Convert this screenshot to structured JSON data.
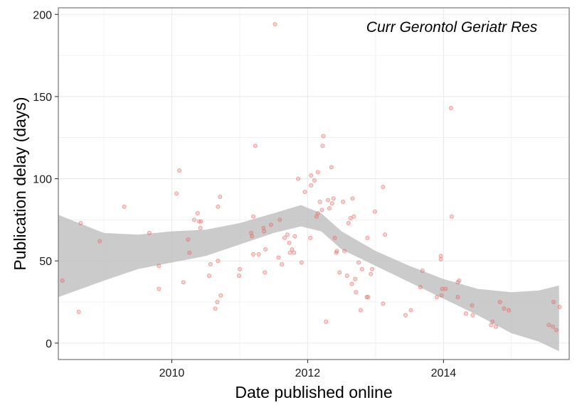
{
  "chart_data": {
    "type": "scatter",
    "title": "",
    "annotation": "Curr Gerontol Geriatr Res",
    "xlabel": "Date published online",
    "ylabel": "Publication delay (days)",
    "xlim": [
      2008.33,
      2015.85
    ],
    "ylim": [
      -10,
      204
    ],
    "x_ticks": [
      2010,
      2012,
      2014
    ],
    "y_ticks": [
      0,
      50,
      100,
      150,
      200
    ],
    "x_tick_labels": [
      "2010",
      "2012",
      "2014"
    ],
    "y_tick_labels": [
      "0",
      "50",
      "100",
      "150",
      "200"
    ],
    "grid": true,
    "colors": {
      "points": "#e8665f",
      "ribbon": "#bdbdbd",
      "grid": "#ebebeb",
      "border": "#7f7f7f"
    },
    "points": [
      {
        "x": 2008.39,
        "y": 38
      },
      {
        "x": 2008.63,
        "y": 19
      },
      {
        "x": 2008.66,
        "y": 73
      },
      {
        "x": 2008.94,
        "y": 62
      },
      {
        "x": 2009.3,
        "y": 83
      },
      {
        "x": 2009.67,
        "y": 67
      },
      {
        "x": 2009.81,
        "y": 47
      },
      {
        "x": 2009.81,
        "y": 33
      },
      {
        "x": 2010.07,
        "y": 91
      },
      {
        "x": 2010.11,
        "y": 105
      },
      {
        "x": 2010.17,
        "y": 37
      },
      {
        "x": 2010.24,
        "y": 63
      },
      {
        "x": 2010.26,
        "y": 55
      },
      {
        "x": 2010.33,
        "y": 75
      },
      {
        "x": 2010.38,
        "y": 79
      },
      {
        "x": 2010.43,
        "y": 74
      },
      {
        "x": 2010.4,
        "y": 74
      },
      {
        "x": 2010.42,
        "y": 70
      },
      {
        "x": 2010.55,
        "y": 41
      },
      {
        "x": 2010.57,
        "y": 48
      },
      {
        "x": 2010.64,
        "y": 21
      },
      {
        "x": 2010.67,
        "y": 25
      },
      {
        "x": 2010.68,
        "y": 50
      },
      {
        "x": 2010.68,
        "y": 83
      },
      {
        "x": 2010.71,
        "y": 89
      },
      {
        "x": 2010.72,
        "y": 29
      },
      {
        "x": 2010.99,
        "y": 41
      },
      {
        "x": 2011.0,
        "y": 45
      },
      {
        "x": 2011.17,
        "y": 67
      },
      {
        "x": 2011.18,
        "y": 65
      },
      {
        "x": 2011.2,
        "y": 54
      },
      {
        "x": 2011.2,
        "y": 77
      },
      {
        "x": 2011.23,
        "y": 120
      },
      {
        "x": 2011.28,
        "y": 54
      },
      {
        "x": 2011.35,
        "y": 70
      },
      {
        "x": 2011.36,
        "y": 68
      },
      {
        "x": 2011.37,
        "y": 43
      },
      {
        "x": 2011.38,
        "y": 57
      },
      {
        "x": 2011.46,
        "y": 72
      },
      {
        "x": 2011.52,
        "y": 194
      },
      {
        "x": 2011.57,
        "y": 52
      },
      {
        "x": 2011.59,
        "y": 75
      },
      {
        "x": 2011.62,
        "y": 48
      },
      {
        "x": 2011.66,
        "y": 64
      },
      {
        "x": 2011.7,
        "y": 66
      },
      {
        "x": 2011.73,
        "y": 61
      },
      {
        "x": 2011.74,
        "y": 55
      },
      {
        "x": 2011.77,
        "y": 57
      },
      {
        "x": 2011.8,
        "y": 55
      },
      {
        "x": 2011.81,
        "y": 65
      },
      {
        "x": 2011.86,
        "y": 100
      },
      {
        "x": 2011.91,
        "y": 49
      },
      {
        "x": 2011.96,
        "y": 92
      },
      {
        "x": 2012.04,
        "y": 64
      },
      {
        "x": 2012.05,
        "y": 102
      },
      {
        "x": 2012.05,
        "y": 96
      },
      {
        "x": 2012.1,
        "y": 99
      },
      {
        "x": 2012.13,
        "y": 77
      },
      {
        "x": 2012.15,
        "y": 79
      },
      {
        "x": 2012.15,
        "y": 104
      },
      {
        "x": 2012.18,
        "y": 86
      },
      {
        "x": 2012.21,
        "y": 81
      },
      {
        "x": 2012.22,
        "y": 120
      },
      {
        "x": 2012.23,
        "y": 126
      },
      {
        "x": 2012.27,
        "y": 13
      },
      {
        "x": 2012.3,
        "y": 87
      },
      {
        "x": 2012.32,
        "y": 82
      },
      {
        "x": 2012.35,
        "y": 107
      },
      {
        "x": 2012.36,
        "y": 85
      },
      {
        "x": 2012.38,
        "y": 88
      },
      {
        "x": 2012.4,
        "y": 64
      },
      {
        "x": 2012.42,
        "y": 55
      },
      {
        "x": 2012.43,
        "y": 56
      },
      {
        "x": 2012.47,
        "y": 43
      },
      {
        "x": 2012.52,
        "y": 86
      },
      {
        "x": 2012.54,
        "y": 56
      },
      {
        "x": 2012.58,
        "y": 41
      },
      {
        "x": 2012.6,
        "y": 73
      },
      {
        "x": 2012.63,
        "y": 76
      },
      {
        "x": 2012.65,
        "y": 36
      },
      {
        "x": 2012.66,
        "y": 88
      },
      {
        "x": 2012.68,
        "y": 77
      },
      {
        "x": 2012.7,
        "y": 39
      },
      {
        "x": 2012.71,
        "y": 31
      },
      {
        "x": 2012.75,
        "y": 49
      },
      {
        "x": 2012.78,
        "y": 20
      },
      {
        "x": 2012.8,
        "y": 45
      },
      {
        "x": 2012.87,
        "y": 28
      },
      {
        "x": 2012.88,
        "y": 64
      },
      {
        "x": 2012.89,
        "y": 28
      },
      {
        "x": 2012.93,
        "y": 42
      },
      {
        "x": 2012.95,
        "y": 45
      },
      {
        "x": 2012.99,
        "y": 80
      },
      {
        "x": 2013.11,
        "y": 95
      },
      {
        "x": 2013.11,
        "y": 24
      },
      {
        "x": 2013.14,
        "y": 66
      },
      {
        "x": 2013.44,
        "y": 17
      },
      {
        "x": 2013.52,
        "y": 20
      },
      {
        "x": 2013.66,
        "y": 34
      },
      {
        "x": 2013.69,
        "y": 44
      },
      {
        "x": 2013.9,
        "y": 28
      },
      {
        "x": 2013.96,
        "y": 53
      },
      {
        "x": 2013.96,
        "y": 51
      },
      {
        "x": 2013.97,
        "y": 29
      },
      {
        "x": 2013.98,
        "y": 33
      },
      {
        "x": 2014.03,
        "y": 33
      },
      {
        "x": 2014.11,
        "y": 143
      },
      {
        "x": 2014.12,
        "y": 77
      },
      {
        "x": 2014.21,
        "y": 37
      },
      {
        "x": 2014.21,
        "y": 28
      },
      {
        "x": 2014.23,
        "y": 38
      },
      {
        "x": 2014.33,
        "y": 18
      },
      {
        "x": 2014.42,
        "y": 23
      },
      {
        "x": 2014.43,
        "y": 17
      },
      {
        "x": 2014.7,
        "y": 11
      },
      {
        "x": 2014.72,
        "y": 13
      },
      {
        "x": 2014.77,
        "y": 10
      },
      {
        "x": 2014.83,
        "y": 25
      },
      {
        "x": 2014.89,
        "y": 21
      },
      {
        "x": 2014.96,
        "y": 20
      },
      {
        "x": 2015.55,
        "y": 11
      },
      {
        "x": 2015.61,
        "y": 10
      },
      {
        "x": 2015.62,
        "y": 25
      },
      {
        "x": 2015.66,
        "y": 8
      },
      {
        "x": 2015.71,
        "y": 22
      }
    ],
    "smooth_ribbon": [
      {
        "x": 2008.33,
        "lo": 28,
        "hi": 78
      },
      {
        "x": 2009.0,
        "lo": 38,
        "hi": 67
      },
      {
        "x": 2009.5,
        "lo": 45,
        "hi": 66
      },
      {
        "x": 2010.0,
        "lo": 49,
        "hi": 68
      },
      {
        "x": 2010.5,
        "lo": 53,
        "hi": 69
      },
      {
        "x": 2011.0,
        "lo": 60,
        "hi": 73
      },
      {
        "x": 2011.5,
        "lo": 67,
        "hi": 79
      },
      {
        "x": 2011.9,
        "lo": 71,
        "hi": 84
      },
      {
        "x": 2012.2,
        "lo": 68,
        "hi": 79
      },
      {
        "x": 2012.5,
        "lo": 57,
        "hi": 68
      },
      {
        "x": 2013.0,
        "lo": 47,
        "hi": 56
      },
      {
        "x": 2013.5,
        "lo": 37,
        "hi": 47
      },
      {
        "x": 2014.0,
        "lo": 27,
        "hi": 39
      },
      {
        "x": 2014.5,
        "lo": 17,
        "hi": 33
      },
      {
        "x": 2015.0,
        "lo": 6,
        "hi": 31
      },
      {
        "x": 2015.4,
        "lo": 1,
        "hi": 32
      },
      {
        "x": 2015.7,
        "lo": -5,
        "hi": 35
      }
    ]
  }
}
